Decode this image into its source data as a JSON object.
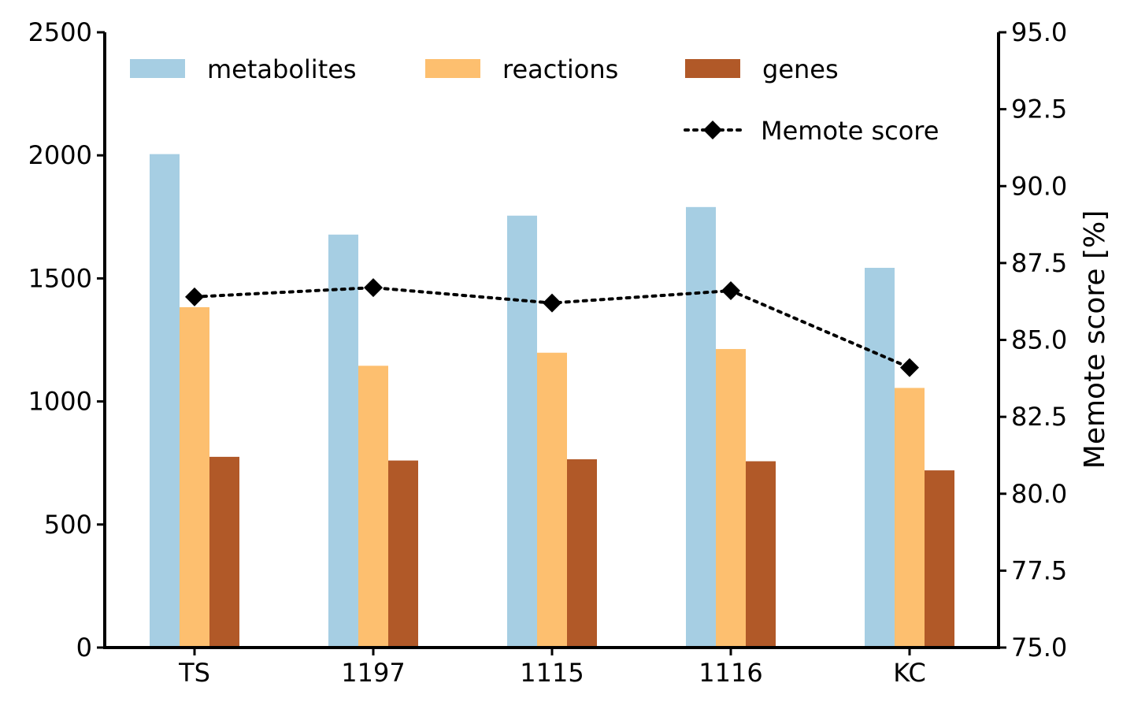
{
  "chart_data": {
    "type": "bar",
    "categories": [
      "TS",
      "1197",
      "1115",
      "1116",
      "KC"
    ],
    "series": [
      {
        "name": "metabolites",
        "values": [
          2005,
          1678,
          1755,
          1790,
          1543
        ],
        "color": "#a6cee3"
      },
      {
        "name": "reactions",
        "values": [
          1383,
          1145,
          1198,
          1213,
          1055
        ],
        "color": "#fdbf6f"
      },
      {
        "name": "genes",
        "values": [
          775,
          760,
          765,
          757,
          720
        ],
        "color": "#b15928"
      }
    ],
    "line_series": {
      "name": "Memote score",
      "values": [
        86.4,
        86.7,
        86.2,
        86.6,
        84.1
      ],
      "color": "#000000",
      "style": "dotted",
      "marker": "diamond"
    },
    "ylim_left": [
      0,
      2500
    ],
    "yticks_left": [
      "0",
      "500",
      "1000",
      "1500",
      "2000",
      "2500"
    ],
    "ylim_right": [
      75.0,
      95.0
    ],
    "yticks_right": [
      "75.0",
      "77.5",
      "80.0",
      "82.5",
      "85.0",
      "87.5",
      "90.0",
      "92.5",
      "95.0"
    ],
    "ylabel_right": "Memote score [%]",
    "xlabel": "",
    "ylabel": "",
    "title": "",
    "grid": false,
    "legend_position": "top"
  }
}
